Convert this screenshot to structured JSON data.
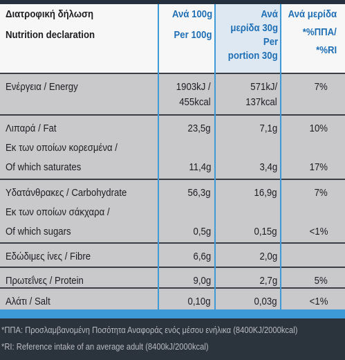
{
  "header": {
    "title_gr": "Διατροφική δήλωση",
    "title_en": "Nutrition declaration",
    "per_100g": [
      "Ανά 100g",
      "Per 100g"
    ],
    "per_portion": [
      "Ανά",
      "μερίδα 30g",
      "Per",
      "portion 30g"
    ],
    "ri": [
      "Ανά μερίδα",
      "*%ΠΠΑ/",
      "*%RI"
    ]
  },
  "table": {
    "rows": [
      {
        "label": [
          "Ενέργεια / Energy"
        ],
        "per_100g": [
          "1903kJ /",
          "455kcal"
        ],
        "per_portion": [
          "571kJ/",
          "137kcal"
        ],
        "ri": [
          "7%"
        ]
      },
      {
        "label": [
          "Λιπαρά / Fat"
        ],
        "per_100g": [
          "23,5g"
        ],
        "per_portion": [
          "7,1g"
        ],
        "ri": [
          "10%"
        ],
        "sub": {
          "label": [
            "Εκ των οποίων κορεσμένα /",
            "Of which saturates"
          ],
          "per_100g": "11,4g",
          "per_portion": "3,4g",
          "ri": "17%"
        }
      },
      {
        "label": [
          "Υδατάνθρακες / Carbohydrate"
        ],
        "per_100g": [
          "56,3g"
        ],
        "per_portion": [
          "16,9g"
        ],
        "ri": [
          "7%"
        ],
        "sub": {
          "label": [
            "Εκ των οποίων σάκχαρα /",
            "Of which sugars"
          ],
          "per_100g": "0,5g",
          "per_portion": "0,15g",
          "ri": "<1%"
        }
      },
      {
        "label": [
          "Εδώδιμες ίνες / Fibre"
        ],
        "per_100g": [
          "6,6g"
        ],
        "per_portion": [
          "2,0g"
        ]
      },
      {
        "label": [
          "Πρωτεΐνες / Protein"
        ],
        "per_100g": [
          "9,0g"
        ],
        "per_portion": [
          "2,7g"
        ],
        "ri": [
          "5%"
        ]
      },
      {
        "label": [
          "Αλάτι / Salt"
        ],
        "per_100g": [
          "0,10g"
        ],
        "per_portion": [
          "0,03g"
        ],
        "ri": [
          "<1%"
        ]
      }
    ]
  },
  "footer": [
    "*ΠΠΑ: Προσλαμβανομένη Ποσότητα Αναφοράς ενός μέσου ενήλικα (8400KJ/2000kcal)",
    "*RI: Reference intake of an average adult (8400kJ/2000kcal)"
  ]
}
